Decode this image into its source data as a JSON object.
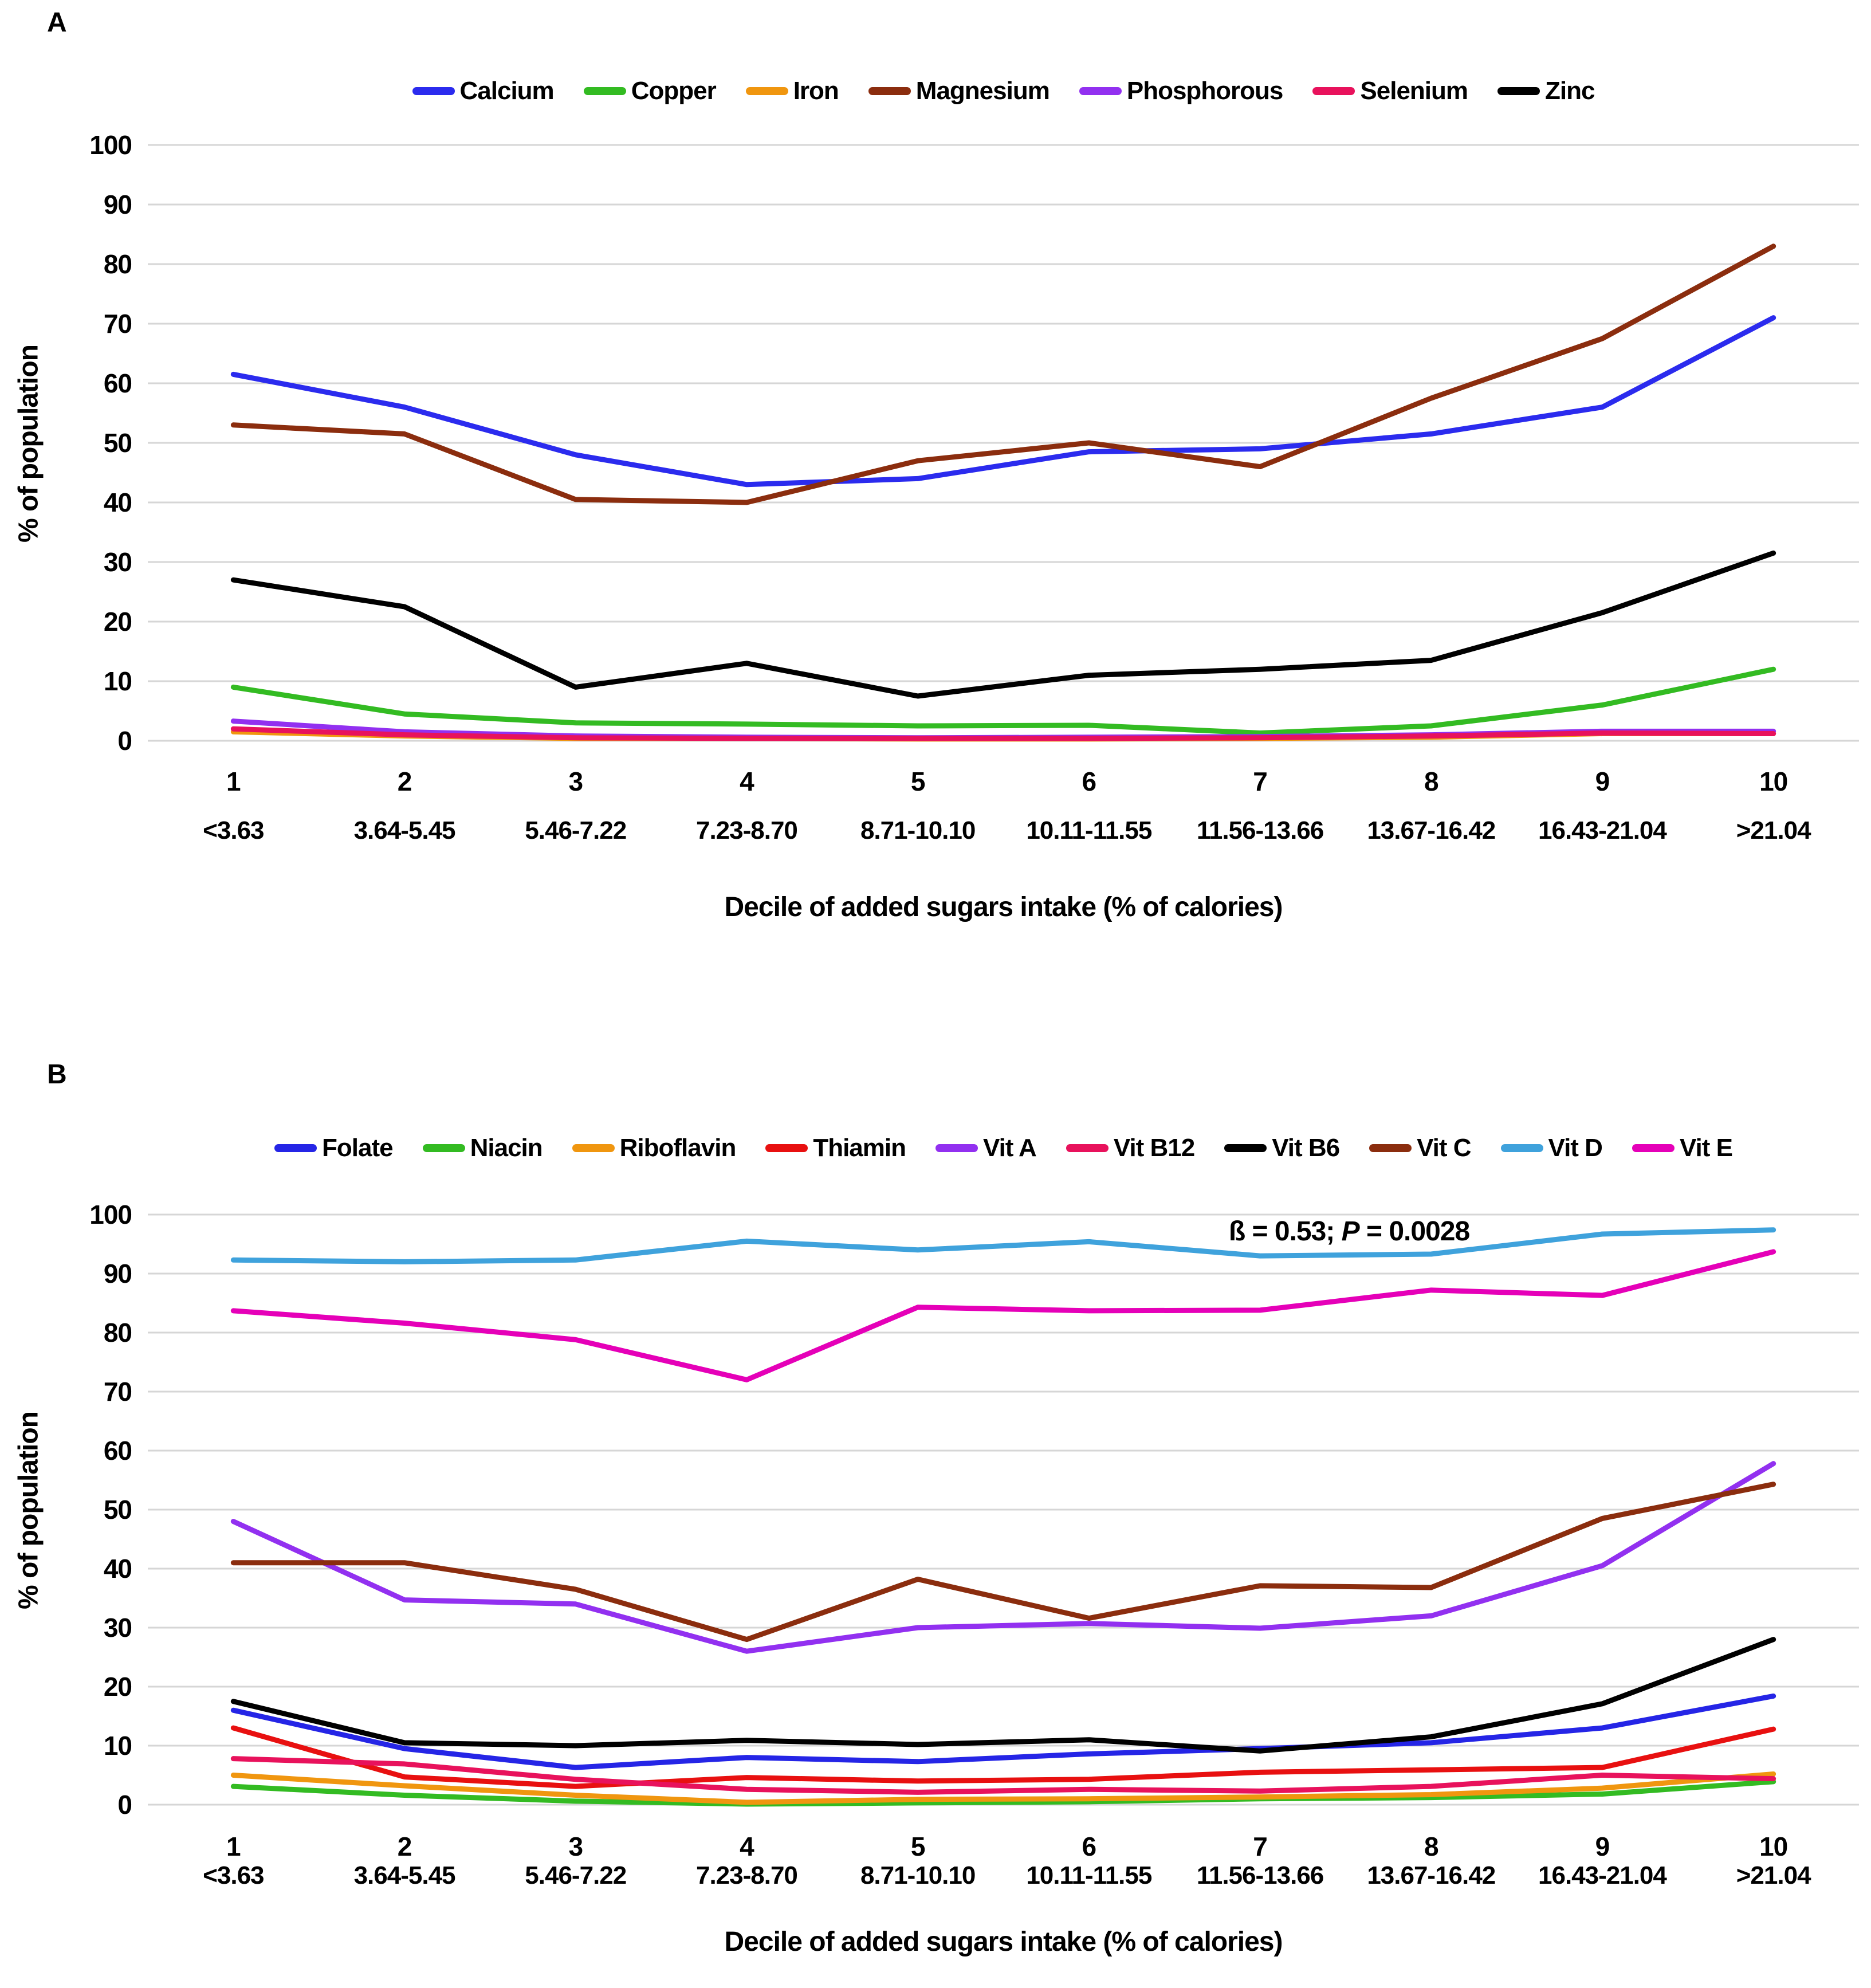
{
  "chart_data": [
    {
      "type": "line",
      "panel_label": "A",
      "title": "",
      "xlabel": "Decile of added sugars intake (% of calories)",
      "ylabel": "% of population",
      "ylim": [
        0,
        100
      ],
      "ytick_step": 10,
      "grid": true,
      "legend_position": "top",
      "categories": [
        "1",
        "2",
        "3",
        "4",
        "5",
        "6",
        "7",
        "8",
        "9",
        "10"
      ],
      "category_ranges": [
        "<3.63",
        "3.64-5.45",
        "5.46-7.22",
        "7.23-8.70",
        "8.71-10.10",
        "10.11-11.55",
        "11.56-13.66",
        "13.67-16.42",
        "16.43-21.04",
        ">21.04"
      ],
      "series": [
        {
          "name": "Calcium",
          "color": "#2B2BEE",
          "values": [
            61.5,
            56,
            48,
            43,
            44,
            48.5,
            49,
            51.5,
            56,
            71
          ]
        },
        {
          "name": "Copper",
          "color": "#33BB22",
          "values": [
            9,
            4.5,
            3,
            2.8,
            2.5,
            2.6,
            1.3,
            2.5,
            6,
            12
          ]
        },
        {
          "name": "Iron",
          "color": "#F0960F",
          "values": [
            1.5,
            0.8,
            0.4,
            0.4,
            0.3,
            0.3,
            0.4,
            0.6,
            1.2,
            1.2
          ]
        },
        {
          "name": "Magnesium",
          "color": "#8B2D0E",
          "values": [
            53,
            51.5,
            40.5,
            40,
            47,
            50,
            46,
            57.5,
            67.5,
            83
          ]
        },
        {
          "name": "Phosphorous",
          "color": "#9230F0",
          "values": [
            3.3,
            1.5,
            0.8,
            0.6,
            0.5,
            0.6,
            0.7,
            1,
            1.6,
            1.6
          ]
        },
        {
          "name": "Selenium",
          "color": "#E8125C",
          "values": [
            2,
            1,
            0.5,
            0.4,
            0.4,
            0.4,
            0.5,
            0.8,
            1.3,
            1.2
          ]
        },
        {
          "name": "Zinc",
          "color": "#000000",
          "values": [
            27,
            22.5,
            9,
            13,
            7.5,
            11,
            12,
            13.5,
            21.5,
            31.5
          ]
        }
      ]
    },
    {
      "type": "line",
      "panel_label": "B",
      "title": "",
      "xlabel": "Decile of added sugars intake (% of calories)",
      "ylabel": "% of population",
      "ylim": [
        0,
        100
      ],
      "ytick_step": 10,
      "grid": true,
      "legend_position": "top",
      "annotation": {
        "before_p": "ß  = 0.53; ",
        "p_label": "P",
        "after_p": " = 0.0028"
      },
      "categories": [
        "1",
        "2",
        "3",
        "4",
        "5",
        "6",
        "7",
        "8",
        "9",
        "10"
      ],
      "category_ranges": [
        "<3.63",
        "3.64-5.45",
        "5.46-7.22",
        "7.23-8.70",
        "8.71-10.10",
        "10.11-11.55",
        "11.56-13.66",
        "13.67-16.42",
        "16.43-21.04",
        ">21.04"
      ],
      "series": [
        {
          "name": "Folate",
          "color": "#2525E6",
          "values": [
            16,
            9.5,
            6.3,
            8,
            7.3,
            8.6,
            9.5,
            10.5,
            13,
            18.4
          ]
        },
        {
          "name": "Niacin",
          "color": "#33BB22",
          "values": [
            3.1,
            1.6,
            0.6,
            0.1,
            0.3,
            0.5,
            1,
            1.2,
            1.8,
            3.9
          ]
        },
        {
          "name": "Riboflavin",
          "color": "#F0960F",
          "values": [
            5,
            3.2,
            1.6,
            0.4,
            0.9,
            1,
            1.3,
            1.7,
            2.8,
            5.2
          ]
        },
        {
          "name": "Thiamin",
          "color": "#E81010",
          "values": [
            13,
            4.7,
            3.1,
            4.6,
            4,
            4.3,
            5.5,
            5.9,
            6.3,
            12.8
          ]
        },
        {
          "name": "Vit A",
          "color": "#9230F0",
          "values": [
            48,
            34.7,
            34,
            26,
            30,
            30.7,
            29.9,
            32,
            40.5,
            57.8
          ]
        },
        {
          "name": "Vit B12",
          "color": "#E8125C",
          "values": [
            7.8,
            6.9,
            4.3,
            2.6,
            2.1,
            2.6,
            2.3,
            3.1,
            5,
            4.4
          ]
        },
        {
          "name": "Vit B6",
          "color": "#000000",
          "values": [
            17.5,
            10.5,
            10,
            10.9,
            10.2,
            11,
            9.1,
            11.5,
            17.1,
            28
          ]
        },
        {
          "name": "Vit C",
          "color": "#8B2D0E",
          "values": [
            41,
            41,
            36.5,
            28,
            38.2,
            31.6,
            37.1,
            36.8,
            48.5,
            54.3
          ]
        },
        {
          "name": "Vit D",
          "color": "#3FA2DC",
          "values": [
            92.3,
            92,
            92.3,
            95.5,
            94,
            95.4,
            93,
            93.3,
            96.7,
            97.4
          ]
        },
        {
          "name": "Vit E",
          "color": "#E500B8",
          "values": [
            83.7,
            81.6,
            78.8,
            72,
            84.3,
            83.7,
            83.8,
            87.2,
            86.3,
            93.7
          ]
        }
      ]
    }
  ]
}
